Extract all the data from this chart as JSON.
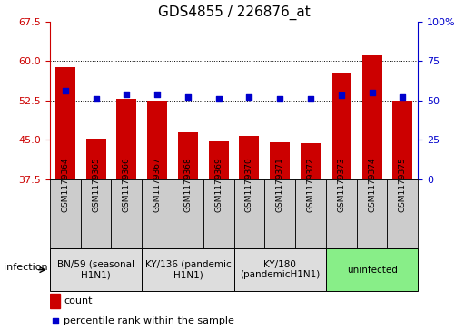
{
  "title": "GDS4855 / 226876_at",
  "samples": [
    "GSM1179364",
    "GSM1179365",
    "GSM1179366",
    "GSM1179367",
    "GSM1179368",
    "GSM1179369",
    "GSM1179370",
    "GSM1179371",
    "GSM1179372",
    "GSM1179373",
    "GSM1179374",
    "GSM1179375"
  ],
  "counts": [
    58.8,
    45.3,
    52.8,
    52.5,
    46.5,
    44.7,
    45.8,
    44.5,
    44.3,
    57.8,
    61.0,
    52.5
  ],
  "percentiles": [
    56,
    51,
    54,
    54,
    52,
    51,
    52,
    51,
    51,
    53,
    55,
    52
  ],
  "ylim_left": [
    37.5,
    67.5
  ],
  "ylim_right": [
    0,
    100
  ],
  "yticks_left": [
    37.5,
    45.0,
    52.5,
    60.0,
    67.5
  ],
  "yticks_right": [
    0,
    25,
    50,
    75,
    100
  ],
  "bar_color": "#cc0000",
  "dot_color": "#0000cc",
  "groups": [
    {
      "label": "BN/59 (seasonal\nH1N1)",
      "start": 0,
      "end": 2,
      "color": "#dddddd"
    },
    {
      "label": "KY/136 (pandemic\nH1N1)",
      "start": 3,
      "end": 5,
      "color": "#dddddd"
    },
    {
      "label": "KY/180\n(pandemicH1N1)",
      "start": 6,
      "end": 8,
      "color": "#dddddd"
    },
    {
      "label": "uninfected",
      "start": 9,
      "end": 11,
      "color": "#88ee88"
    }
  ],
  "infection_label": "infection",
  "legend_count_label": "count",
  "legend_pct_label": "percentile rank within the sample",
  "title_fontsize": 11,
  "sample_box_color": "#cccccc",
  "right_pct_label_only_100": true
}
